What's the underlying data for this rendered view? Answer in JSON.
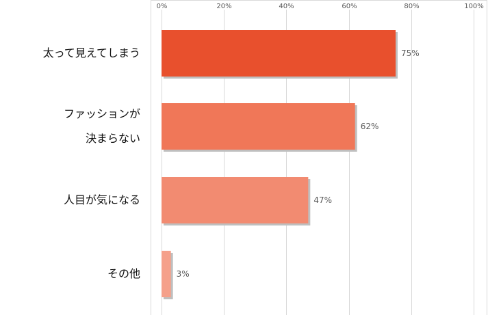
{
  "chart_data": {
    "type": "bar",
    "orientation": "horizontal",
    "categories": [
      [
        "太って見えてしまう"
      ],
      [
        "ファッションが",
        "決まらない"
      ],
      [
        "人目が気になる"
      ],
      [
        "その他"
      ]
    ],
    "values": [
      75,
      62,
      47,
      3
    ],
    "value_labels": [
      "75%",
      "62%",
      "47%",
      "3%"
    ],
    "xlim": [
      0,
      100
    ],
    "x_ticks": [
      "0%",
      "20%",
      "40%",
      "60%",
      "80%",
      "100%"
    ],
    "x_tick_values": [
      0,
      20,
      40,
      60,
      80,
      100
    ],
    "axis_position": "top",
    "grid": true,
    "bar_colors": [
      "#e8502d",
      "#f07758",
      "#f28b71",
      "#f5a08a"
    ]
  }
}
